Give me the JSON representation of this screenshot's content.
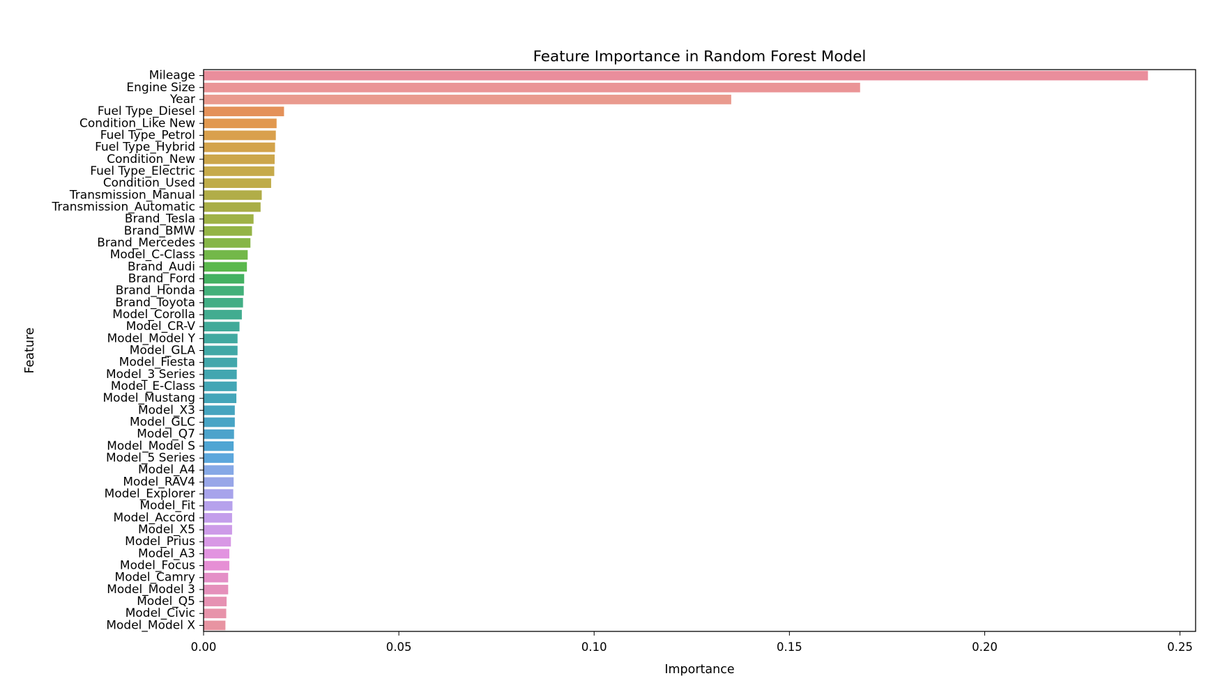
{
  "chart_data": {
    "type": "bar",
    "orientation": "horizontal",
    "title": "Feature Importance in Random Forest Model",
    "xlabel": "Importance",
    "ylabel": "Feature",
    "xlim": [
      0,
      0.254
    ],
    "xticks": [
      0.0,
      0.05,
      0.1,
      0.15,
      0.2,
      0.25
    ],
    "xtick_labels": [
      "0.00",
      "0.05",
      "0.10",
      "0.15",
      "0.20",
      "0.25"
    ],
    "grid": false,
    "categories": [
      "Mileage",
      "Engine Size",
      "Year",
      "Fuel Type_Diesel",
      "Condition_Like New",
      "Fuel Type_Petrol",
      "Fuel Type_Hybrid",
      "Condition_New",
      "Fuel Type_Electric",
      "Condition_Used",
      "Transmission_Manual",
      "Transmission_Automatic",
      "Brand_Tesla",
      "Brand_BMW",
      "Brand_Mercedes",
      "Model_C-Class",
      "Brand_Audi",
      "Brand_Ford",
      "Brand_Honda",
      "Brand_Toyota",
      "Model_Corolla",
      "Model_CR-V",
      "Model_Model Y",
      "Model_GLA",
      "Model_Fiesta",
      "Model_3 Series",
      "Model_E-Class",
      "Model_Mustang",
      "Model_X3",
      "Model_GLC",
      "Model_Q7",
      "Model_Model S",
      "Model_5 Series",
      "Model_A4",
      "Model_RAV4",
      "Model_Explorer",
      "Model_Fit",
      "Model_Accord",
      "Model_X5",
      "Model_Prius",
      "Model_A3",
      "Model_Focus",
      "Model_Camry",
      "Model_Model 3",
      "Model_Q5",
      "Model_Civic",
      "Model_Model X"
    ],
    "values": [
      0.2418,
      0.1681,
      0.1351,
      0.0206,
      0.0187,
      0.0185,
      0.0183,
      0.0182,
      0.0181,
      0.0173,
      0.0149,
      0.0146,
      0.0128,
      0.0124,
      0.012,
      0.0113,
      0.0111,
      0.0104,
      0.0103,
      0.0101,
      0.0098,
      0.0092,
      0.0087,
      0.0087,
      0.0086,
      0.0085,
      0.0085,
      0.0084,
      0.008,
      0.008,
      0.0078,
      0.0077,
      0.0077,
      0.0077,
      0.0077,
      0.0076,
      0.0074,
      0.0073,
      0.0073,
      0.007,
      0.0066,
      0.0066,
      0.0063,
      0.0063,
      0.0059,
      0.0058,
      0.0056
    ],
    "colors": [
      "#ea8e9c",
      "#ea9496",
      "#e99a8e",
      "#e49159",
      "#e1984f",
      "#d9a04d",
      "#d3a34b",
      "#cca64b",
      "#c6aa4a",
      "#bfac49",
      "#b1ad48",
      "#a9ae47",
      "#9fb246",
      "#94b446",
      "#86b647",
      "#73b849",
      "#5ab84c",
      "#44b162",
      "#43b07a",
      "#42ae85",
      "#42ac90",
      "#41aa99",
      "#41a9a0",
      "#41a8a6",
      "#42a7ab",
      "#42a6b0",
      "#43a6b5",
      "#44a5b9",
      "#46a4bf",
      "#48a4c5",
      "#4ca3cb",
      "#4fa5d3",
      "#5ca7dc",
      "#86a8e6",
      "#98a6e8",
      "#a7a3eb",
      "#b6a1ec",
      "#c39eeb",
      "#cd9be8",
      "#d898e5",
      "#e293e0",
      "#e68fd5",
      "#e48fc7",
      "#e590bb",
      "#e691b2",
      "#e793aa",
      "#e894a2"
    ]
  }
}
